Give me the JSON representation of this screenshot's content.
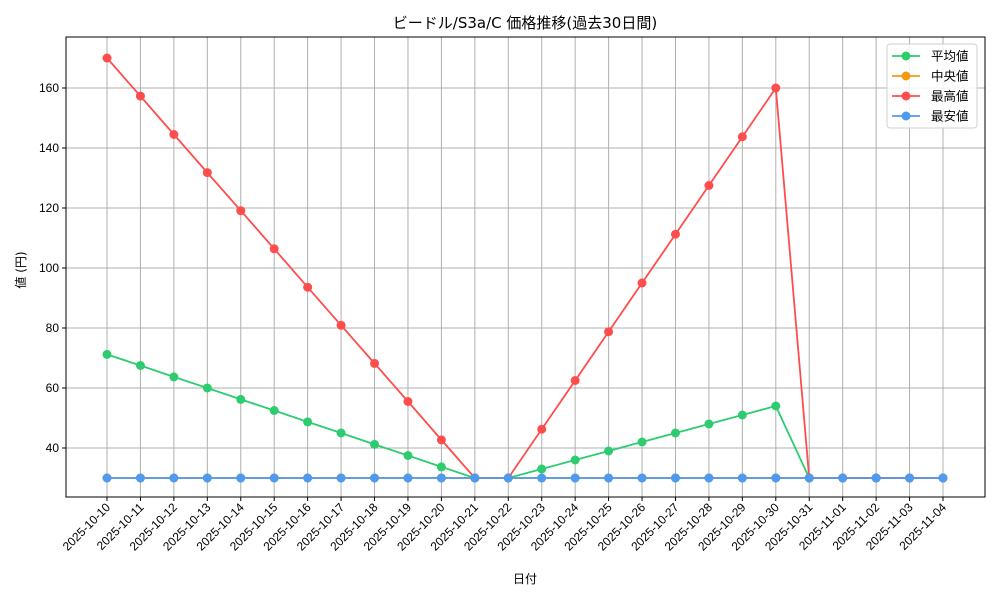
{
  "chart_data": {
    "type": "line",
    "title": "ビードル/S3a/C 価格推移(過去30日間)",
    "xlabel": "日付",
    "ylabel": "値 (円)",
    "ylim": [
      23.7,
      177
    ],
    "yticks": [
      40,
      60,
      80,
      100,
      120,
      140,
      160
    ],
    "grid": true,
    "legend_position": "upper right",
    "x": [
      "2025-10-10",
      "2025-10-11",
      "2025-10-12",
      "2025-10-13",
      "2025-10-14",
      "2025-10-15",
      "2025-10-16",
      "2025-10-17",
      "2025-10-18",
      "2025-10-19",
      "2025-10-20",
      "2025-10-21",
      "2025-10-22",
      "2025-10-23",
      "2025-10-24",
      "2025-10-25",
      "2025-10-26",
      "2025-10-27",
      "2025-10-28",
      "2025-10-29",
      "2025-10-30",
      "2025-10-31",
      "2025-11-01",
      "2025-11-02",
      "2025-11-03",
      "2025-11-04"
    ],
    "series": [
      {
        "name": "平均値",
        "color": "#2ecc71",
        "values": [
          71.2,
          67.5,
          63.7,
          60.0,
          56.2,
          52.5,
          48.7,
          45.0,
          41.2,
          37.5,
          33.7,
          30,
          30,
          33,
          36,
          39,
          42,
          45,
          48,
          51,
          54,
          30,
          30,
          30,
          30,
          30
        ]
      },
      {
        "name": "中央値",
        "color": "#f39c12",
        "values": [
          30,
          30,
          30,
          30,
          30,
          30,
          30,
          30,
          30,
          30,
          30,
          30,
          30,
          30,
          30,
          30,
          30,
          30,
          30,
          30,
          30,
          30,
          30,
          30,
          30,
          30
        ]
      },
      {
        "name": "最高値",
        "color": "#ff4d4d",
        "values": [
          170,
          157.3,
          144.5,
          131.8,
          119.1,
          106.4,
          93.6,
          80.9,
          68.2,
          55.5,
          42.7,
          30,
          30,
          46.25,
          62.5,
          78.75,
          95,
          111.25,
          127.5,
          143.75,
          160,
          30,
          30,
          30,
          30,
          30
        ]
      },
      {
        "name": "最安値",
        "color": "#4e9af1",
        "values": [
          30,
          30,
          30,
          30,
          30,
          30,
          30,
          30,
          30,
          30,
          30,
          30,
          30,
          30,
          30,
          30,
          30,
          30,
          30,
          30,
          30,
          30,
          30,
          30,
          30,
          30
        ]
      }
    ]
  },
  "legend": {
    "items": [
      {
        "label": "平均値",
        "color": "#2ecc71"
      },
      {
        "label": "中央値",
        "color": "#f39c12"
      },
      {
        "label": "最高値",
        "color": "#ff4d4d"
      },
      {
        "label": "最安値",
        "color": "#4e9af1"
      }
    ]
  }
}
